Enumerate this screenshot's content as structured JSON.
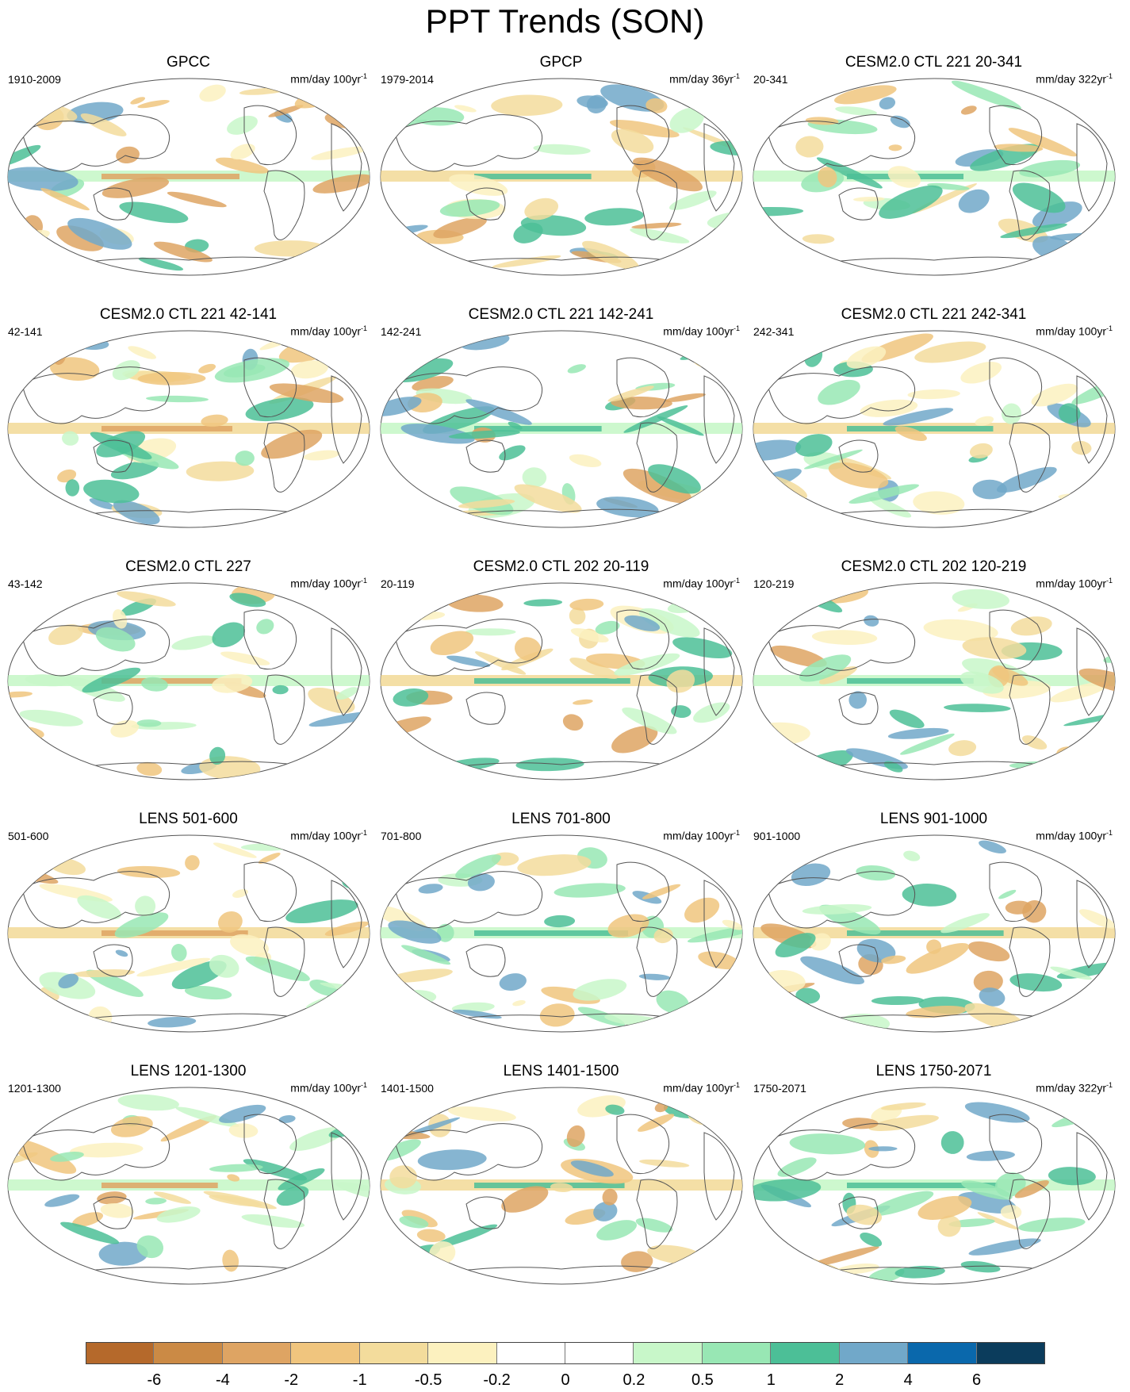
{
  "title": "PPT Trends (SON)",
  "panels": [
    {
      "title": "GPCC",
      "period": "1910-2009",
      "units": "mm/day 100yr",
      "sup": "-1"
    },
    {
      "title": "GPCP",
      "period": "1979-2014",
      "units": "mm/day 36yr",
      "sup": "-1"
    },
    {
      "title": "CESM2.0 CTL 221 20-341",
      "period": "20-341",
      "units": "mm/day 322yr",
      "sup": "-1"
    },
    {
      "title": "CESM2.0 CTL 221 42-141",
      "period": "42-141",
      "units": "mm/day 100yr",
      "sup": "-1"
    },
    {
      "title": "CESM2.0 CTL 221 142-241",
      "period": "142-241",
      "units": "mm/day 100yr",
      "sup": "-1"
    },
    {
      "title": "CESM2.0 CTL 221 242-341",
      "period": "242-341",
      "units": "mm/day 100yr",
      "sup": "-1"
    },
    {
      "title": "CESM2.0 CTL 227",
      "period": "43-142",
      "units": "mm/day 100yr",
      "sup": "-1"
    },
    {
      "title": "CESM2.0 CTL 202 20-119",
      "period": "20-119",
      "units": "mm/day 100yr",
      "sup": "-1"
    },
    {
      "title": "CESM2.0 CTL 202 120-219",
      "period": "120-219",
      "units": "mm/day 100yr",
      "sup": "-1"
    },
    {
      "title": "LENS 501-600",
      "period": "501-600",
      "units": "mm/day 100yr",
      "sup": "-1"
    },
    {
      "title": "LENS 701-800",
      "period": "701-800",
      "units": "mm/day 100yr",
      "sup": "-1"
    },
    {
      "title": "LENS 901-1000",
      "period": "901-1000",
      "units": "mm/day 100yr",
      "sup": "-1"
    },
    {
      "title": "LENS 1201-1300",
      "period": "1201-1300",
      "units": "mm/day 100yr",
      "sup": "-1"
    },
    {
      "title": "LENS 1401-1500",
      "period": "1401-1500",
      "units": "mm/day 100yr",
      "sup": "-1"
    },
    {
      "title": "LENS 1750-2071",
      "period": "1750-2071",
      "units": "mm/day 322yr",
      "sup": "-1"
    }
  ],
  "colorbar": {
    "colors": [
      "#b5692b",
      "#cb8a45",
      "#dea463",
      "#f0c57e",
      "#f3dc9c",
      "#fcf1bf",
      "#ffffff",
      "#ffffff",
      "#c8f7c9",
      "#98e7b4",
      "#4cbf97",
      "#71a8c9",
      "#0a68ac",
      "#0b3c5c"
    ],
    "tick_labels": [
      "-6",
      "-4",
      "-2",
      "-1",
      "-0.5",
      "-0.2",
      "0",
      "0.2",
      "0.5",
      "1",
      "2",
      "4",
      "6"
    ]
  }
}
